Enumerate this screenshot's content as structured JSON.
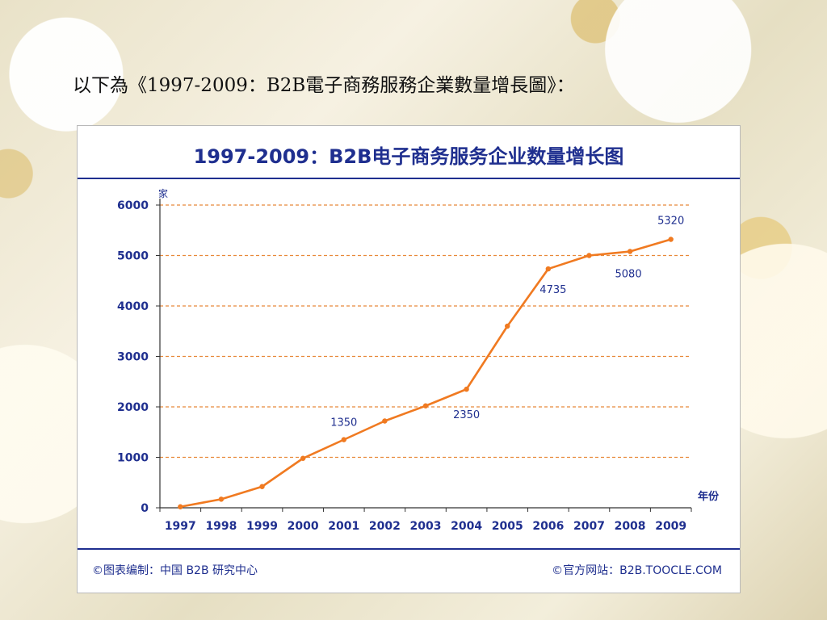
{
  "slide": {
    "caption": "以下為《1997-2009：B2B電子商務服務企業數量增長圖》："
  },
  "chart_data": {
    "type": "line",
    "title": "1997-2009：B2B电子商务服务企业数量增长图",
    "ylabel": "家",
    "xlabel": "年份",
    "ylim": [
      0,
      6000
    ],
    "yticks": [
      0,
      1000,
      2000,
      3000,
      4000,
      5000,
      6000
    ],
    "grid": true,
    "categories": [
      "1997",
      "1998",
      "1999",
      "2000",
      "2001",
      "2002",
      "2003",
      "2004",
      "2005",
      "2006",
      "2007",
      "2008",
      "2009"
    ],
    "series": [
      {
        "values": [
          20,
          170,
          420,
          980,
          1350,
          1720,
          2020,
          2350,
          3600,
          4735,
          5000,
          5080,
          5320
        ],
        "color": "#f07a21"
      }
    ],
    "data_labels": [
      {
        "category": "2001",
        "value": 1350,
        "text": "1350"
      },
      {
        "category": "2004",
        "value": 2350,
        "text": "2350"
      },
      {
        "category": "2006",
        "value": 4735,
        "text": "4735"
      },
      {
        "category": "2008",
        "value": 5080,
        "text": "5080"
      },
      {
        "category": "2009",
        "value": 5320,
        "text": "5320"
      }
    ],
    "footer_left": "©图表编制：中国 B2B 研究中心",
    "footer_right": "©官方网站：B2B.TOOCLE.COM"
  },
  "colors": {
    "accent": "#1f2f8f",
    "line": "#f07a21",
    "grid": "#e8893a"
  }
}
